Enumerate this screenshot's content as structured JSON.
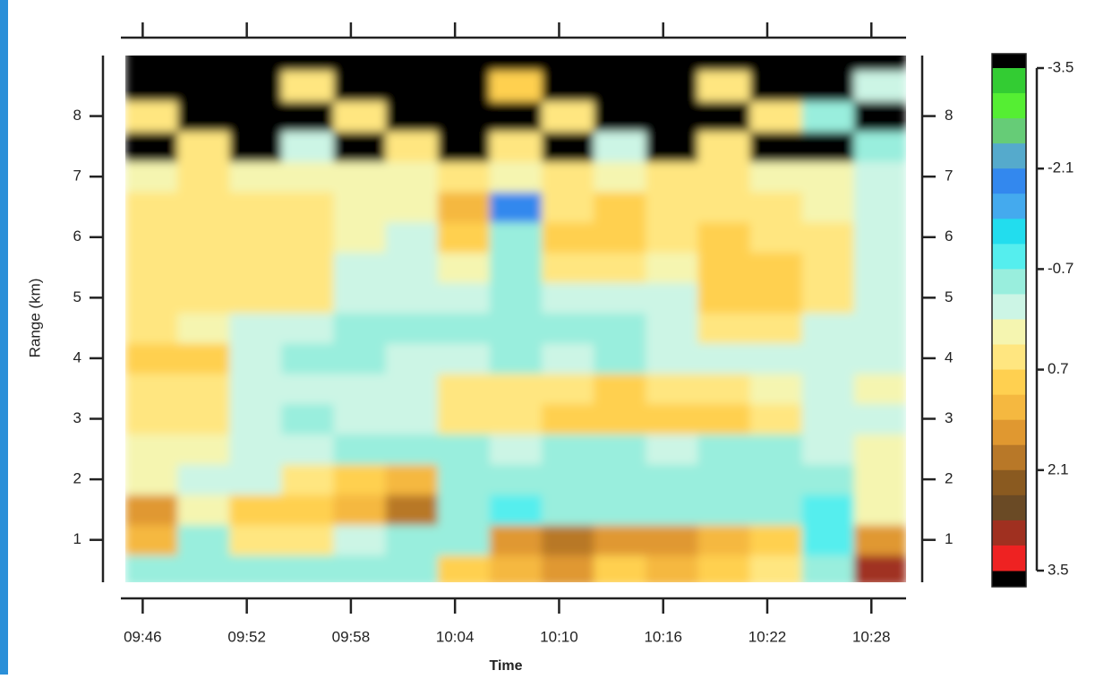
{
  "chart_data": {
    "type": "heatmap",
    "x_label": "Time",
    "y_label": "Range (km)",
    "x": [
      "09:45",
      "09:48",
      "09:51",
      "09:54",
      "09:57",
      "10:00",
      "10:03",
      "10:06",
      "10:09",
      "10:12",
      "10:15",
      "10:18",
      "10:21",
      "10:24",
      "10:27"
    ],
    "x_step_minutes": 3,
    "y": [
      0.5,
      1.0,
      1.5,
      2.0,
      2.5,
      3.0,
      3.5,
      4.0,
      4.5,
      5.0,
      5.5,
      6.0,
      6.5,
      7.0,
      7.5,
      8.0,
      8.5,
      9.0
    ],
    "y_step": 0.5,
    "values": [
      [
        -0.5,
        -0.6,
        -0.4,
        -0.5,
        -0.5,
        -0.5,
        0.8,
        1.2,
        1.4,
        1.0,
        1.2,
        0.9,
        0.4,
        -0.6,
        2.8
      ],
      [
        1.2,
        -0.5,
        0.6,
        0.5,
        -0.3,
        -0.4,
        -0.5,
        1.6,
        1.8,
        1.5,
        1.4,
        1.2,
        0.9,
        -0.9,
        1.5
      ],
      [
        1.6,
        0.2,
        0.9,
        1.0,
        1.2,
        1.8,
        -0.6,
        -0.8,
        -0.6,
        -0.5,
        -0.5,
        -0.5,
        -0.6,
        -0.7,
        0.3
      ],
      [
        0.2,
        -0.3,
        -0.2,
        0.6,
        0.9,
        1.1,
        -0.5,
        -0.6,
        -0.6,
        -0.5,
        -0.6,
        -0.5,
        -0.5,
        -0.5,
        0.3
      ],
      [
        0.3,
        0.1,
        -0.3,
        -0.3,
        -0.4,
        -0.4,
        -0.4,
        -0.3,
        -0.4,
        -0.4,
        -0.3,
        -0.4,
        -0.4,
        -0.3,
        0.1
      ],
      [
        0.4,
        0.5,
        -0.3,
        -0.4,
        -0.3,
        -0.2,
        0.5,
        0.4,
        0.7,
        0.8,
        0.8,
        0.7,
        0.6,
        -0.3,
        -0.2
      ],
      [
        0.5,
        0.6,
        -0.2,
        -0.3,
        -0.2,
        -0.1,
        0.6,
        0.5,
        0.5,
        0.7,
        0.6,
        0.6,
        0.2,
        -0.3,
        0.2
      ],
      [
        0.7,
        0.7,
        -0.3,
        -0.4,
        -0.4,
        -0.3,
        -0.3,
        -0.4,
        -0.3,
        -0.4,
        -0.3,
        -0.3,
        -0.3,
        -0.3,
        -0.2
      ],
      [
        0.4,
        0.3,
        -0.2,
        -0.3,
        -0.4,
        -0.4,
        -0.4,
        -0.5,
        -0.4,
        -0.4,
        -0.3,
        0.4,
        0.5,
        -0.3,
        -0.3
      ],
      [
        0.5,
        0.6,
        0.4,
        0.5,
        -0.3,
        -0.3,
        -0.2,
        -0.5,
        -0.3,
        -0.3,
        -0.2,
        0.7,
        0.8,
        0.5,
        -0.3
      ],
      [
        0.5,
        0.6,
        0.5,
        0.4,
        -0.2,
        -0.3,
        0.3,
        -0.4,
        0.5,
        0.6,
        0.3,
        0.8,
        0.8,
        0.6,
        -0.2
      ],
      [
        0.5,
        0.6,
        0.4,
        0.5,
        0.1,
        -0.2,
        0.9,
        -0.6,
        0.9,
        1.0,
        0.5,
        0.7,
        0.6,
        0.4,
        -0.3
      ],
      [
        0.4,
        0.5,
        0.4,
        0.4,
        0.2,
        0.3,
        1.3,
        -1.8,
        0.5,
        0.7,
        0.4,
        0.6,
        0.6,
        0.3,
        -0.2
      ],
      [
        0.3,
        0.4,
        0.3,
        0.3,
        0.2,
        0.3,
        0.6,
        0.2,
        0.4,
        0.3,
        0.4,
        0.5,
        0.3,
        0.2,
        -0.3
      ],
      [
        -4,
        0.5,
        -4,
        -0.3,
        -4,
        0.4,
        -4,
        0.6,
        -4,
        -0.3,
        -4,
        0.5,
        -4,
        -4,
        -0.4
      ],
      [
        0.6,
        -4,
        4,
        -4,
        0.5,
        -4,
        4,
        -4,
        0.6,
        -4,
        4,
        -4,
        0.4,
        -0.5,
        -4
      ],
      [
        -4,
        4,
        -4,
        0.6,
        -4,
        4,
        -4,
        0.8,
        -4,
        4,
        -4,
        0.5,
        -4,
        4,
        -0.3
      ],
      [
        4,
        -4,
        -4,
        4,
        -4,
        -4,
        4,
        -4,
        4,
        -4,
        -4,
        4,
        -4,
        -4,
        4
      ]
    ],
    "xlim": [
      "09:45",
      "10:30"
    ],
    "xticks": [
      "09:46",
      "09:52",
      "09:58",
      "10:04",
      "10:10",
      "10:16",
      "10:22",
      "10:28"
    ],
    "ylim": [
      0.3,
      9
    ],
    "yticks": [
      1,
      2,
      3,
      4,
      5,
      6,
      7,
      8
    ],
    "zlim": [
      -3.5,
      3.5
    ],
    "zticks": [
      -3.5,
      -2.1,
      -0.7,
      0.7,
      2.1,
      3.5
    ],
    "colorscale": [
      "#33cc33",
      "#55ee33",
      "#66cc77",
      "#55aacc",
      "#3388ee",
      "#44aaee",
      "#22ddee",
      "#55eeee",
      "#99eedd",
      "#ccf5e5",
      "#f5f5b0",
      "#ffe680",
      "#ffd050",
      "#f5b840",
      "#e09830",
      "#b87828",
      "#8a5a20",
      "#6a4a25",
      "#a03020",
      "#ee2222"
    ],
    "under_color": "#000000",
    "over_color": "#000000"
  }
}
